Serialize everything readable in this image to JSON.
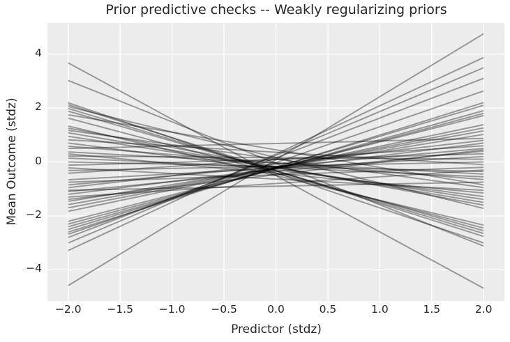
{
  "chart_data": {
    "type": "line",
    "title": "Prior predictive checks -- Weakly regularizing priors",
    "xlabel": "Predictor (stdz)",
    "ylabel": "Mean Outcome (stdz)",
    "x_ticks": [
      -2.0,
      -1.5,
      -1.0,
      -0.5,
      0.0,
      0.5,
      1.0,
      1.5,
      2.0
    ],
    "x_tick_labels": [
      "−2.0",
      "−1.5",
      "−1.0",
      "−0.5",
      "0.0",
      "0.5",
      "1.0",
      "1.5",
      "2.0"
    ],
    "y_ticks": [
      -4,
      -2,
      0,
      2,
      4
    ],
    "y_tick_labels": [
      "−4",
      "−2",
      "0",
      "2",
      "4"
    ],
    "xlim": [
      -2.2,
      2.2
    ],
    "ylim": [
      -5.15,
      5.15
    ],
    "x_range_of_lines": [
      -2,
      2
    ],
    "grid": true,
    "legend": false,
    "n_draws": 50,
    "style": {
      "axes_background": "#ececec",
      "grid_color": "#ffffff",
      "grid_width": 1.4,
      "line_color": "#000000",
      "line_opacity": 0.36,
      "line_width": 2,
      "text_color": "#262626",
      "figure_background": "#ffffff"
    },
    "lines": [
      {
        "intercept": -0.505,
        "slope": -2.088
      },
      {
        "intercept": -0.05,
        "slope": -1.535
      },
      {
        "intercept": -0.405,
        "slope": -1.298
      },
      {
        "intercept": -0.32,
        "slope": -1.22
      },
      {
        "intercept": 0.165,
        "slope": -0.943
      },
      {
        "intercept": -0.335,
        "slope": -1.158
      },
      {
        "intercept": -0.335,
        "slope": -1.108
      },
      {
        "intercept": 0.45,
        "slope": -0.65
      },
      {
        "intercept": -0.415,
        "slope": -1.018
      },
      {
        "intercept": -0.505,
        "slope": -0.918
      },
      {
        "intercept": -0.175,
        "slope": -0.713
      },
      {
        "intercept": 0.11,
        "slope": -0.53
      },
      {
        "intercept": -0.21,
        "slope": -0.645
      },
      {
        "intercept": -0.22,
        "slope": -0.585
      },
      {
        "intercept": 0.36,
        "slope": -0.23
      },
      {
        "intercept": -0.29,
        "slope": -0.495
      },
      {
        "intercept": -0.035,
        "slope": -0.308
      },
      {
        "intercept": 0.685,
        "slope": 0.093
      },
      {
        "intercept": -0.04,
        "slope": -0.205
      },
      {
        "intercept": -0.425,
        "slope": -0.363
      },
      {
        "intercept": 0.16,
        "slope": -0.03
      },
      {
        "intercept": -0.205,
        "slope": -0.173
      },
      {
        "intercept": -0.175,
        "slope": -0.088
      },
      {
        "intercept": 0.09,
        "slope": 0.105
      },
      {
        "intercept": -0.635,
        "slope": -0.208
      },
      {
        "intercept": -0.16,
        "slope": 0.08
      },
      {
        "intercept": 0.09,
        "slope": 0.255
      },
      {
        "intercept": -0.23,
        "slope": 0.215
      },
      {
        "intercept": -0.475,
        "slope": 0.138
      },
      {
        "intercept": -0.175,
        "slope": 0.338
      },
      {
        "intercept": -0.075,
        "slope": 0.438
      },
      {
        "intercept": -0.9,
        "slope": 0.075
      },
      {
        "intercept": -0.35,
        "slope": 0.375
      },
      {
        "intercept": -0.25,
        "slope": 0.475
      },
      {
        "intercept": -0.8,
        "slope": 0.25
      },
      {
        "intercept": -0.47,
        "slope": 0.46
      },
      {
        "intercept": -0.22,
        "slope": 0.62
      },
      {
        "intercept": -0.215,
        "slope": 0.683
      },
      {
        "intercept": -0.22,
        "slope": 0.74
      },
      {
        "intercept": -0.225,
        "slope": 0.803
      },
      {
        "intercept": -0.24,
        "slope": 0.98
      },
      {
        "intercept": -0.25,
        "slope": 1.025
      },
      {
        "intercept": -0.25,
        "slope": 1.075
      },
      {
        "intercept": -0.2,
        "slope": 1.15
      },
      {
        "intercept": -0.2,
        "slope": 1.2
      },
      {
        "intercept": -0.025,
        "slope": 1.328
      },
      {
        "intercept": 0.15,
        "slope": 1.475
      },
      {
        "intercept": 0.245,
        "slope": 1.623
      },
      {
        "intercept": 0.295,
        "slope": 1.788
      },
      {
        "intercept": 0.085,
        "slope": 2.333
      }
    ]
  }
}
